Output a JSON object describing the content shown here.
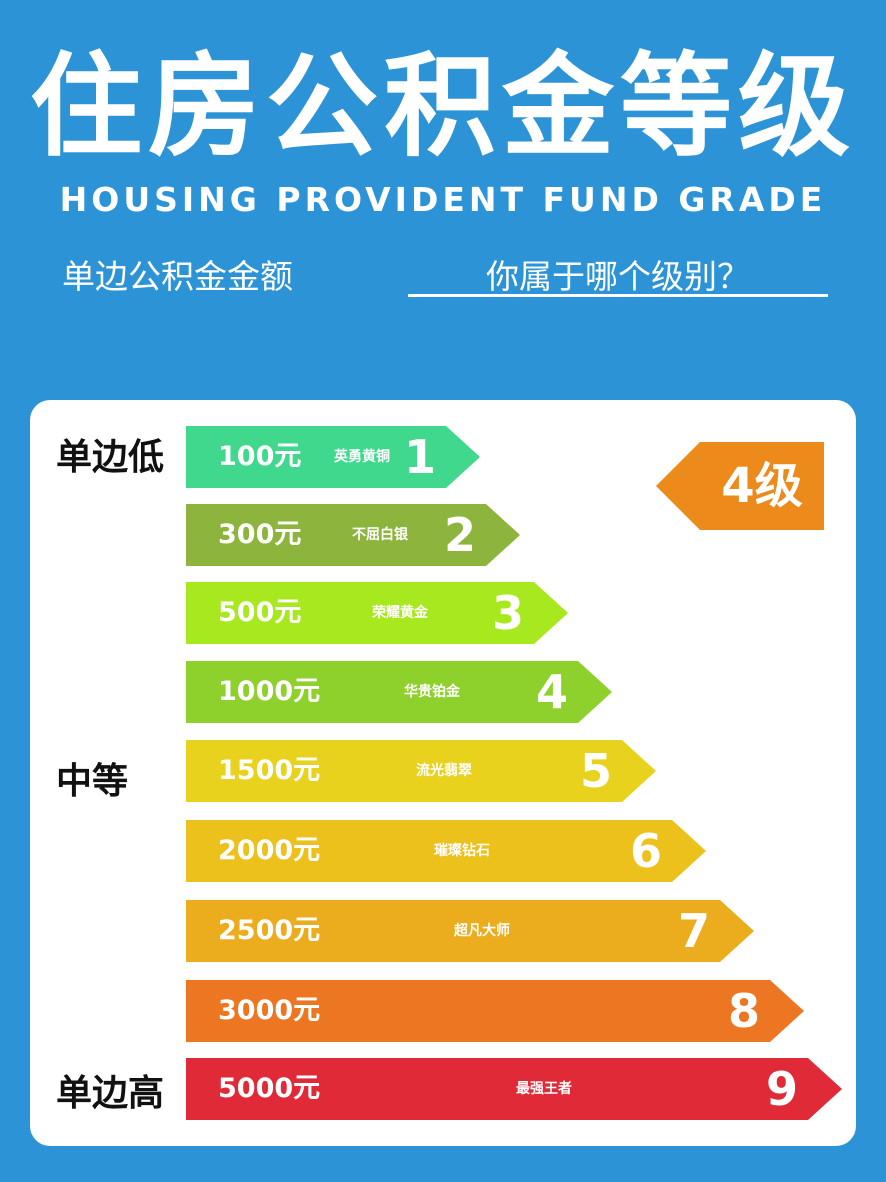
{
  "header": {
    "title": "住房公积金等级",
    "subtitle_en": "HOUSING PROVIDENT FUND GRADE",
    "sub_left": "单边公积金金额",
    "sub_right": "你属于哪个级别？"
  },
  "side_labels": {
    "low": "单边低",
    "mid": "中等",
    "high": "单边高"
  },
  "badge": {
    "label": "4级",
    "color": "#ec8a1c"
  },
  "chart_data": {
    "type": "bar",
    "categories": [
      "1",
      "2",
      "3",
      "4",
      "5",
      "6",
      "7",
      "8",
      "9"
    ],
    "values": [
      100,
      300,
      500,
      1000,
      1500,
      2000,
      2500,
      3000,
      5000
    ],
    "value_labels": [
      "100元",
      "300元",
      "500元",
      "1000元",
      "1500元",
      "2000元",
      "2500元",
      "3000元",
      "5000元"
    ],
    "tier_names": [
      "英勇黄铜",
      "不屈白银",
      "荣耀黄金",
      "华贵铂金",
      "流光翡翠",
      "璀璨钻石",
      "超凡大师",
      "",
      "最强王者"
    ],
    "colors": [
      "#3fd88c",
      "#8db43c",
      "#a8e81e",
      "#8ed02c",
      "#e8d21e",
      "#ecc11c",
      "#ebad1e",
      "#ec7622",
      "#e02a38"
    ],
    "orientation": "horizontal",
    "title": "",
    "xlabel": "",
    "ylabel": ""
  }
}
